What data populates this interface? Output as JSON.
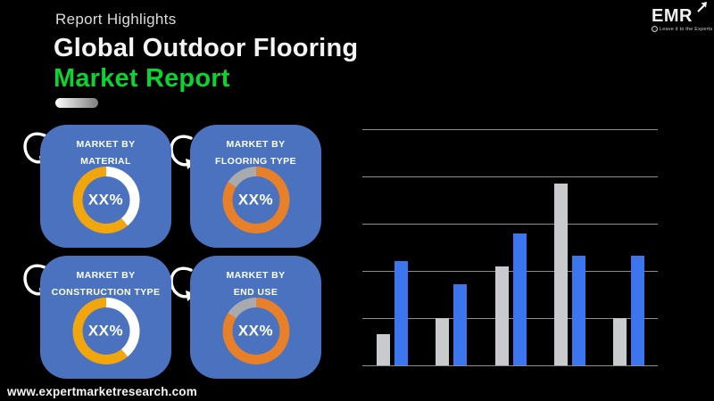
{
  "header": {
    "eyebrow": "Report Highlights",
    "title_line1": "Global Outdoor Flooring",
    "title_line2": "Market Report",
    "accent_green": "#0BD331"
  },
  "logo": {
    "wordmark": "EMR",
    "tagline": "Leave it to the Experts"
  },
  "cards": [
    {
      "label_line1": "MARKET BY",
      "label_line2": "MATERIAL",
      "value": "XX%",
      "donut": {
        "segments": [
          {
            "color": "#FFFFFF",
            "from": 0,
            "to": 140
          },
          {
            "color": "#F2A60D",
            "from": 140,
            "to": 360
          }
        ]
      }
    },
    {
      "label_line1": "MARKET BY",
      "label_line2": "FLOORING TYPE",
      "value": "XX%",
      "donut": {
        "segments": [
          {
            "color": "#E8802A",
            "from": 0,
            "to": 303
          },
          {
            "color": "#A8AAAD",
            "from": 303,
            "to": 360
          }
        ]
      }
    },
    {
      "label_line1": "MARKET BY",
      "label_line2": "CONSTRUCTION TYPE",
      "value": "XX%",
      "donut": {
        "segments": [
          {
            "color": "#FFFFFF",
            "from": 0,
            "to": 140
          },
          {
            "color": "#F2A60D",
            "from": 140,
            "to": 360
          }
        ]
      }
    },
    {
      "label_line1": "MARKET BY",
      "label_line2": "END USE",
      "value": "XX%",
      "donut": {
        "segments": [
          {
            "color": "#E8802A",
            "from": 0,
            "to": 303
          },
          {
            "color": "#A8AAAD",
            "from": 303,
            "to": 360
          }
        ]
      }
    }
  ],
  "chart_data": {
    "type": "bar",
    "categories": [
      "",
      "",
      "",
      "",
      ""
    ],
    "series": [
      {
        "name": "gray",
        "color": "#C9CACE",
        "values": [
          0.66,
          1.0,
          2.1,
          3.85,
          1.0
        ]
      },
      {
        "name": "blue",
        "color": "#3B76EE",
        "values": [
          2.2,
          1.72,
          2.8,
          2.33,
          2.32
        ]
      }
    ],
    "title": "",
    "xlabel": "",
    "ylabel": "",
    "ylim": [
      0,
      5
    ],
    "gridlines": 6,
    "gridline_color": "#8C8C8C",
    "tick_labels_visible": false,
    "legend_position": "none"
  },
  "footer": {
    "website": "www.expertmarketresearch.com"
  },
  "colors": {
    "background": "#000000",
    "card_blue": "#4A72BE",
    "ring_gold": "#F2A60D",
    "ring_orange": "#E8802A",
    "ring_gap_gray": "#A8AAAD",
    "bar_gray": "#C9CACE",
    "bar_blue": "#3B76EE",
    "accent_green": "#0BD331"
  }
}
